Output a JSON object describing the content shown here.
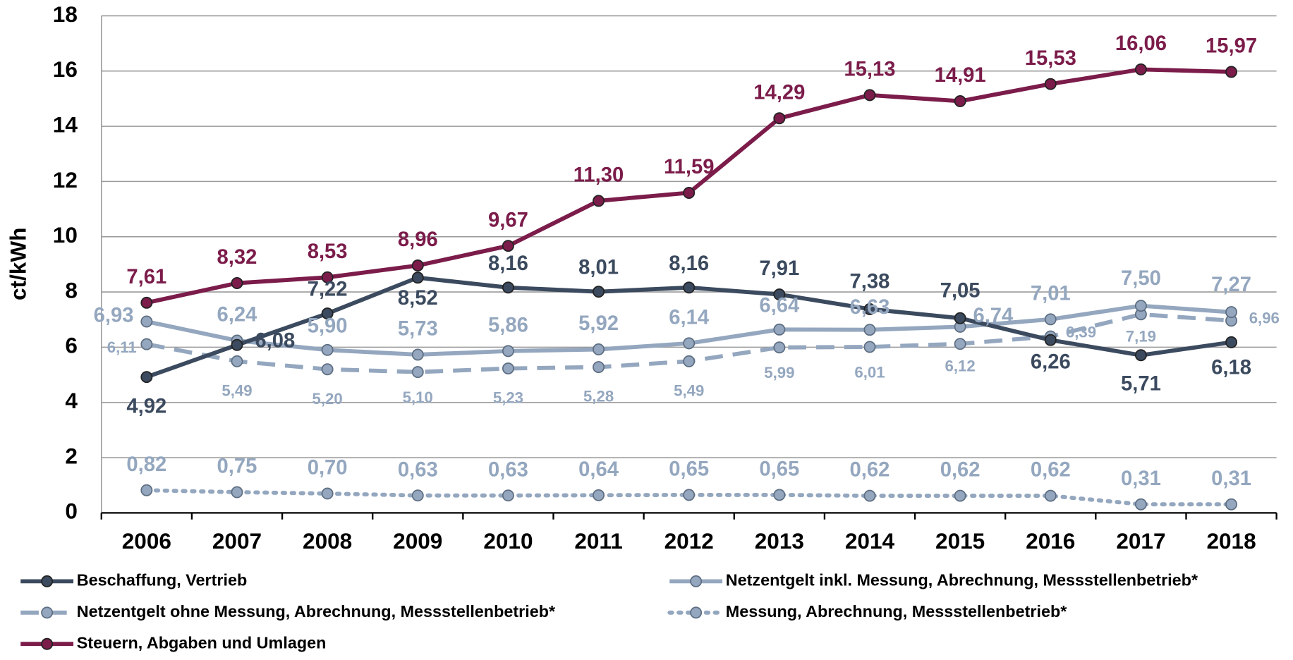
{
  "chart_data": {
    "type": "line",
    "y_label": "ct/kWh",
    "categories": [
      "2006",
      "2007",
      "2008",
      "2009",
      "2010",
      "2011",
      "2012",
      "2013",
      "2014",
      "2015",
      "2016",
      "2017",
      "2018"
    ],
    "ylim": [
      0,
      18
    ],
    "yticks": [
      0,
      2,
      4,
      6,
      8,
      10,
      12,
      14,
      16,
      18
    ],
    "grid": true,
    "series": [
      {
        "name": "Beschaffung, Vertrieb",
        "color": "#3b4a5e",
        "line_style": "solid",
        "values": [
          4.92,
          6.08,
          7.22,
          8.52,
          8.16,
          8.01,
          8.16,
          7.91,
          7.38,
          7.05,
          6.26,
          5.71,
          6.18
        ],
        "value_labels": [
          "4,92",
          "6,08",
          "7,22",
          "8,52",
          "8,16",
          "8,01",
          "8,16",
          "7,91",
          "7,38",
          "7,05",
          "6,26",
          "5,71",
          "6,18"
        ]
      },
      {
        "name": "Netzentgelt inkl. Messung, Abrechnung, Messstellenbetrieb*",
        "color": "#94a7bf",
        "line_style": "solid",
        "values": [
          6.93,
          6.24,
          5.9,
          5.73,
          5.86,
          5.92,
          6.14,
          6.64,
          6.63,
          6.74,
          7.01,
          7.5,
          7.27
        ],
        "value_labels": [
          "6,93",
          "6,24",
          "5,90",
          "5,73",
          "5,86",
          "5,92",
          "6,14",
          "6,64",
          "6,63",
          "6,74",
          "7,01",
          "7,50",
          "7,27"
        ]
      },
      {
        "name": "Netzentgelt ohne Messung, Abrechnung, Messstellenbetrieb*",
        "color": "#94a7bf",
        "line_style": "dashed",
        "values": [
          6.11,
          5.49,
          5.2,
          5.1,
          5.23,
          5.28,
          5.49,
          5.99,
          6.01,
          6.12,
          6.39,
          7.19,
          6.96
        ],
        "value_labels": [
          "6,11",
          "5,49",
          "5,20",
          "5,10",
          "5,23",
          "5,28",
          "5,49",
          "5,99",
          "6,01",
          "6,12",
          "6,39",
          "7,19",
          "6,96"
        ]
      },
      {
        "name": "Messung, Abrechnung, Messstellenbetrieb*",
        "color": "#94a7bf",
        "line_style": "dotted",
        "values": [
          0.82,
          0.75,
          0.7,
          0.63,
          0.63,
          0.64,
          0.65,
          0.65,
          0.62,
          0.62,
          0.62,
          0.31,
          0.31
        ],
        "value_labels": [
          "0,82",
          "0,75",
          "0,70",
          "0,63",
          "0,63",
          "0,64",
          "0,65",
          "0,65",
          "0,62",
          "0,62",
          "0,62",
          "0,31",
          "0,31"
        ]
      },
      {
        "name": "Steuern, Abgaben und Umlagen",
        "color": "#7b1c4a",
        "line_style": "solid",
        "values": [
          7.61,
          8.32,
          8.53,
          8.96,
          9.67,
          11.3,
          11.59,
          14.29,
          15.13,
          14.91,
          15.53,
          16.06,
          15.97
        ],
        "value_labels": [
          "7,61",
          "8,32",
          "8,53",
          "8,96",
          "9,67",
          "11,30",
          "11,59",
          "14,29",
          "15,13",
          "14,91",
          "15,53",
          "16,06",
          "15,97"
        ]
      }
    ]
  }
}
